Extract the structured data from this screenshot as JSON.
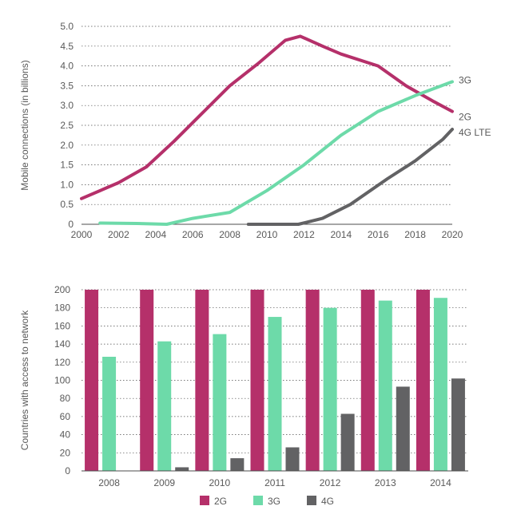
{
  "chart_data": [
    {
      "type": "line",
      "ylabel": "Mobile connections (in billions)",
      "xlabel": "",
      "xlim": [
        2000,
        2020
      ],
      "ylim": [
        0,
        5
      ],
      "x_ticks": [
        "2000",
        "2002",
        "2004",
        "2006",
        "2008",
        "2010",
        "2012",
        "2014",
        "2016",
        "2018",
        "2020"
      ],
      "y_ticks": [
        "0",
        "0.5",
        "1.0",
        "1.5",
        "2.0",
        "2.5",
        "3.0",
        "3.5",
        "4.0",
        "4.5",
        "5.0"
      ],
      "grid": true,
      "series": [
        {
          "name": "2G",
          "color": "#b5306a",
          "points": [
            [
              2000,
              0.65
            ],
            [
              2002,
              1.05
            ],
            [
              2003.5,
              1.45
            ],
            [
              2005,
              2.1
            ],
            [
              2006.5,
              2.8
            ],
            [
              2008,
              3.5
            ],
            [
              2009.5,
              4.05
            ],
            [
              2011,
              4.65
            ],
            [
              2011.8,
              4.75
            ],
            [
              2013,
              4.5
            ],
            [
              2014,
              4.3
            ],
            [
              2016,
              4.0
            ],
            [
              2017.5,
              3.5
            ],
            [
              2019,
              3.1
            ],
            [
              2020,
              2.85
            ]
          ]
        },
        {
          "name": "3G",
          "color": "#6ddaa9",
          "points": [
            [
              2001,
              0.03
            ],
            [
              2003,
              0.02
            ],
            [
              2004.6,
              0.0
            ],
            [
              2006,
              0.15
            ],
            [
              2008,
              0.3
            ],
            [
              2010,
              0.85
            ],
            [
              2012,
              1.5
            ],
            [
              2014,
              2.25
            ],
            [
              2016,
              2.85
            ],
            [
              2018,
              3.25
            ],
            [
              2020,
              3.6
            ]
          ]
        },
        {
          "name": "4G LTE",
          "color": "#626264",
          "points": [
            [
              2009,
              0.0
            ],
            [
              2011.7,
              0.0
            ],
            [
              2013,
              0.15
            ],
            [
              2014.5,
              0.5
            ],
            [
              2016.5,
              1.15
            ],
            [
              2018,
              1.6
            ],
            [
              2019.5,
              2.15
            ],
            [
              2020,
              2.4
            ]
          ]
        }
      ]
    },
    {
      "type": "bar",
      "ylabel": "Countries with access to network",
      "xlabel": "",
      "ylim": [
        0,
        200
      ],
      "y_ticks": [
        "0",
        "20",
        "40",
        "60",
        "80",
        "100",
        "120",
        "140",
        "160",
        "180",
        "200"
      ],
      "categories": [
        "2008",
        "2009",
        "2010",
        "2011",
        "2012",
        "2013",
        "2014"
      ],
      "grid": true,
      "legend_position": "bottom",
      "series": [
        {
          "name": "2G",
          "color": "#b5306a",
          "values": [
            200,
            200,
            200,
            200,
            200,
            200,
            200
          ]
        },
        {
          "name": "3G",
          "color": "#6ddaa9",
          "values": [
            126,
            143,
            151,
            170,
            180,
            188,
            191
          ]
        },
        {
          "name": "4G",
          "color": "#626264",
          "values": [
            0,
            4,
            14,
            26,
            63,
            93,
            102
          ]
        }
      ]
    }
  ]
}
